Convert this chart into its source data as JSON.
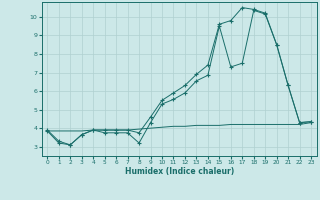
{
  "bg_color": "#cce8e8",
  "grid_color": "#b0d0d0",
  "line_color": "#1a6e6a",
  "xlabel": "Humidex (Indice chaleur)",
  "ylim": [
    2.5,
    10.8
  ],
  "xlim": [
    -0.5,
    23.5
  ],
  "yticks": [
    3,
    4,
    5,
    6,
    7,
    8,
    9,
    10
  ],
  "xticks": [
    0,
    1,
    2,
    3,
    4,
    5,
    6,
    7,
    8,
    9,
    10,
    11,
    12,
    13,
    14,
    15,
    16,
    17,
    18,
    19,
    20,
    21,
    22,
    23
  ],
  "line1_x": [
    0,
    1,
    2,
    3,
    4,
    5,
    6,
    7,
    8,
    9,
    10,
    11,
    12,
    13,
    14,
    15,
    16,
    17,
    18,
    19,
    20,
    21,
    22,
    23
  ],
  "line1_y": [
    3.85,
    3.85,
    3.85,
    3.85,
    3.9,
    3.9,
    3.9,
    3.9,
    3.95,
    4.0,
    4.05,
    4.1,
    4.1,
    4.15,
    4.15,
    4.15,
    4.2,
    4.2,
    4.2,
    4.2,
    4.2,
    4.2,
    4.2,
    4.3
  ],
  "line2_x": [
    0,
    1,
    2,
    3,
    4,
    5,
    6,
    7,
    8,
    9,
    10,
    11,
    12,
    13,
    14,
    15,
    16,
    17,
    18,
    19,
    20,
    21,
    22,
    23
  ],
  "line2_y": [
    3.85,
    3.2,
    3.1,
    3.65,
    3.9,
    3.75,
    3.75,
    3.75,
    3.2,
    4.3,
    5.3,
    5.55,
    5.9,
    6.55,
    6.85,
    9.5,
    7.3,
    7.5,
    10.35,
    10.15,
    8.5,
    6.3,
    4.3,
    4.35
  ],
  "line3_x": [
    0,
    1,
    2,
    3,
    4,
    5,
    6,
    7,
    8,
    9,
    10,
    11,
    12,
    13,
    14,
    15,
    16,
    17,
    18,
    19,
    20,
    21,
    22,
    23
  ],
  "line3_y": [
    3.9,
    3.3,
    3.1,
    3.65,
    3.9,
    3.9,
    3.9,
    3.9,
    3.75,
    4.6,
    5.5,
    5.9,
    6.3,
    6.9,
    7.4,
    9.6,
    9.8,
    10.5,
    10.4,
    10.2,
    8.5,
    6.3,
    4.3,
    4.35
  ]
}
